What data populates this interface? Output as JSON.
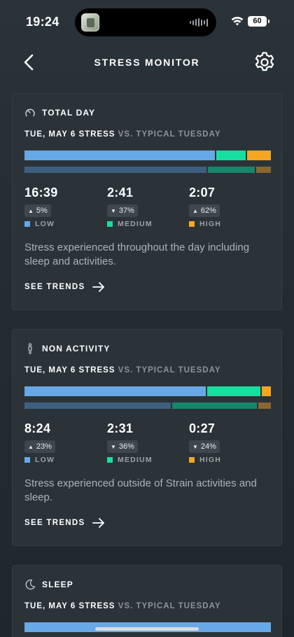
{
  "status_bar": {
    "time": "19:24",
    "battery": "60"
  },
  "header": {
    "title": "STRESS MONITOR"
  },
  "cards": [
    {
      "label": "TOTAL DAY",
      "compare_main": "TUE, MAY 6 STRESS",
      "compare_vs": "VS. TYPICAL TUESDAY",
      "stats": [
        {
          "value": "16:39",
          "change": "5%",
          "direction": "up",
          "label": "LOW"
        },
        {
          "value": "2:41",
          "change": "37%",
          "direction": "down",
          "label": "MEDIUM"
        },
        {
          "value": "2:07",
          "change": "62%",
          "direction": "up",
          "label": "HIGH"
        }
      ],
      "description": "Stress experienced throughout the day including sleep and activities.",
      "trends_label": "SEE TRENDS"
    },
    {
      "label": "NON ACTIVITY",
      "compare_main": "TUE, MAY 6 STRESS",
      "compare_vs": "VS. TYPICAL TUESDAY",
      "stats": [
        {
          "value": "8:24",
          "change": "23%",
          "direction": "up",
          "label": "LOW"
        },
        {
          "value": "2:31",
          "change": "36%",
          "direction": "down",
          "label": "MEDIUM"
        },
        {
          "value": "0:27",
          "change": "24%",
          "direction": "down",
          "label": "HIGH"
        }
      ],
      "description": "Stress experienced outside of Strain activities and sleep.",
      "trends_label": "SEE TRENDS"
    },
    {
      "label": "SLEEP",
      "compare_main": "TUE, MAY 6 STRESS",
      "compare_vs": "VS. TYPICAL TUESDAY"
    }
  ],
  "colors": {
    "low": "#67a8e6",
    "medium": "#16e0a0",
    "high": "#f5a623",
    "background": "#252d33",
    "card": "#2b3338"
  },
  "icons": {
    "back": "chevron-left-icon",
    "settings": "gear-icon",
    "total_day": "gauge-icon",
    "non_activity": "person-standing-icon",
    "sleep": "moon-icon"
  }
}
